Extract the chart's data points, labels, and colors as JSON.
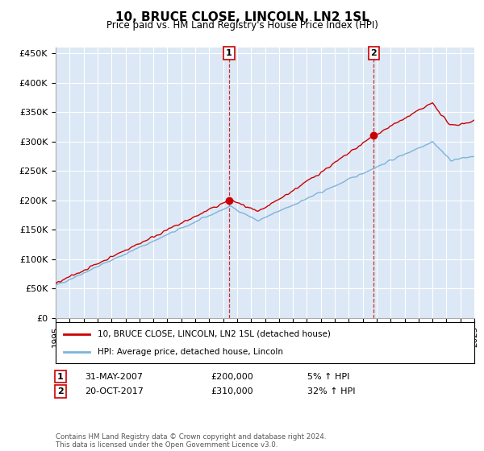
{
  "title": "10, BRUCE CLOSE, LINCOLN, LN2 1SL",
  "subtitle": "Price paid vs. HM Land Registry's House Price Index (HPI)",
  "ylim": [
    0,
    460000
  ],
  "yticks": [
    0,
    50000,
    100000,
    150000,
    200000,
    250000,
    300000,
    350000,
    400000,
    450000
  ],
  "ytick_labels": [
    "£0",
    "£50K",
    "£100K",
    "£150K",
    "£200K",
    "£250K",
    "£300K",
    "£350K",
    "£400K",
    "£450K"
  ],
  "bg_color": "#dce8f5",
  "sale1_date": 2007.42,
  "sale1_price": 200000,
  "sale1_label": "1",
  "sale1_text": "31-MAY-2007",
  "sale1_amount": "£200,000",
  "sale1_hpi": "5% ↑ HPI",
  "sale2_date": 2017.8,
  "sale2_price": 310000,
  "sale2_label": "2",
  "sale2_text": "20-OCT-2017",
  "sale2_amount": "£310,000",
  "sale2_hpi": "32% ↑ HPI",
  "line_color_red": "#cc0000",
  "line_color_blue": "#7fb3d9",
  "legend_label_red": "10, BRUCE CLOSE, LINCOLN, LN2 1SL (detached house)",
  "legend_label_blue": "HPI: Average price, detached house, Lincoln",
  "footnote": "Contains HM Land Registry data © Crown copyright and database right 2024.\nThis data is licensed under the Open Government Licence v3.0.",
  "xstart": 1995,
  "xend": 2025
}
